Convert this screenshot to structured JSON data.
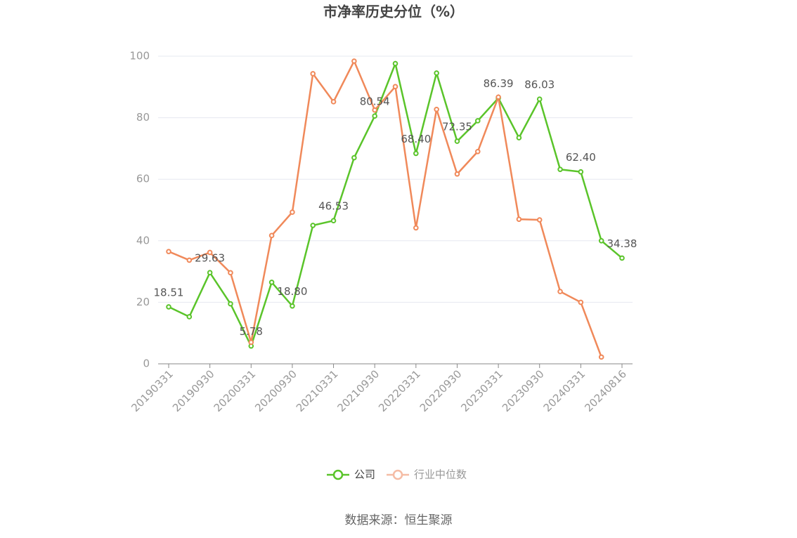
{
  "chart_data": {
    "type": "line",
    "title": "市净率历史分位（%）",
    "categories": [
      "20190331",
      null,
      "20190930",
      null,
      "20200331",
      null,
      "20200930",
      null,
      "20210331",
      null,
      "20210930",
      null,
      "20220331",
      null,
      "20220930",
      null,
      "20230331",
      null,
      "20230930",
      null,
      "20240331",
      null,
      "20240816"
    ],
    "series": [
      {
        "name": "公司",
        "color": "#5ac42a",
        "values": [
          18.51,
          15.3,
          29.63,
          19.5,
          5.78,
          26.5,
          18.8,
          45,
          46.53,
          67,
          80.54,
          97.6,
          68.4,
          94.5,
          72.35,
          79,
          86.39,
          73.5,
          86.03,
          63.2,
          62.4,
          40,
          34.38
        ],
        "value_labels": [
          "18.51",
          null,
          "29.63",
          null,
          "5.78",
          null,
          "18.80",
          null,
          "46.53",
          null,
          "80.54",
          null,
          "68.40",
          null,
          "72.35",
          null,
          "86.39",
          null,
          "86.03",
          null,
          "62.40",
          null,
          "34.38"
        ]
      },
      {
        "name": "行业中位数",
        "color": "#f0895a",
        "values": [
          36.5,
          33.7,
          36.2,
          29.6,
          7,
          41.7,
          49.3,
          94.3,
          85.2,
          98.4,
          82.5,
          90.1,
          44.2,
          82.7,
          61.7,
          69,
          86.7,
          47,
          46.8,
          23.5,
          20,
          2.2,
          null
        ]
      }
    ],
    "ylim": [
      0,
      100
    ],
    "yticks": [
      0,
      20,
      40,
      60,
      80,
      100
    ],
    "grid": true,
    "source": "数据来源：恒生聚源"
  }
}
